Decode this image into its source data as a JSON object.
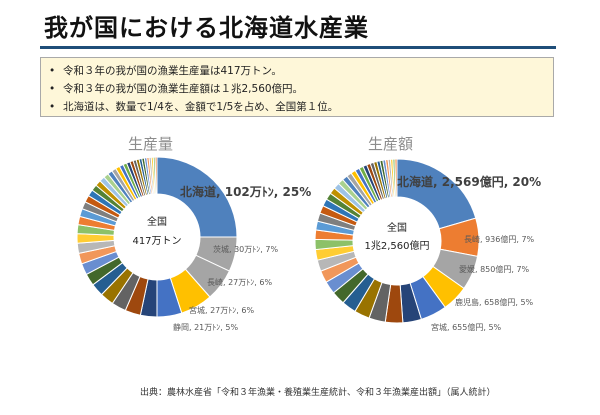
{
  "page": {
    "title": "我が国における北海道水産業",
    "bullets": [
      "令和３年の我が国の漁業生産量は417万トン。",
      "令和３年の我が国の漁業生産額は１兆2,560億円。",
      "北海道は、数量で1/4を、金額で1/5を占め、全国第１位。"
    ],
    "bullet_marker": "•",
    "source": "出典：農林水産省「令和３年漁業・養殖業生産統計、令和３年漁業産出額」（属人統計）"
  },
  "colors": {
    "palette": [
      "#4f81bd",
      "#a5a5a5",
      "#ffc000",
      "#4472c4",
      "#70ad47",
      "#264478",
      "#9e480e",
      "#636363",
      "#997300",
      "#255e91",
      "#43682b",
      "#698ed0",
      "#f1975a",
      "#b7b7b7",
      "#ffcd33",
      "#8cc168",
      "#ed7d31",
      "#5b9bd5",
      "#7f7f7f",
      "#c55a11",
      "#2e75b6",
      "#548235",
      "#bf9000",
      "#9dc3e6",
      "#a9d18e"
    ]
  },
  "chart_data": [
    {
      "type": "pie",
      "title": "生産量",
      "center_label": [
        "全国",
        "417万トン"
      ],
      "unit": "万トン",
      "total": 417,
      "labeled": [
        {
          "label": "北海道, 102万ﾄﾝ, 25%",
          "name": "北海道",
          "value": 102,
          "share": 0.25,
          "color": "#4f81bd",
          "emphasis": true
        },
        {
          "label": "茨城, 30万ﾄﾝ, 7%",
          "name": "茨城",
          "value": 30,
          "share": 0.07,
          "color": "#a5a5a5"
        },
        {
          "label": "長崎, 27万ﾄﾝ, 6%",
          "name": "長崎",
          "value": 27,
          "share": 0.065,
          "color": "#a5a5a5"
        },
        {
          "label": "宮城, 27万ﾄﾝ, 6%",
          "name": "宮城",
          "value": 27,
          "share": 0.065,
          "color": "#ffc000"
        },
        {
          "label": "静岡, 21万ﾄﾝ, 5%",
          "name": "静岡",
          "value": 21,
          "share": 0.05,
          "color": "#4472c4"
        }
      ],
      "others_count": 37
    },
    {
      "type": "pie",
      "title": "生産額",
      "center_label": [
        "全国",
        "1兆2,560億円"
      ],
      "unit": "億円",
      "total": 12560,
      "labeled": [
        {
          "label": "北海道, 2,569億円, 20%",
          "name": "北海道",
          "value": 2569,
          "share": 0.205,
          "color": "#4f81bd",
          "emphasis": true
        },
        {
          "label": "長崎, 936億円, 7%",
          "name": "長崎",
          "value": 936,
          "share": 0.075,
          "color": "#ed7d31"
        },
        {
          "label": "愛媛, 850億円, 7%",
          "name": "愛媛",
          "value": 850,
          "share": 0.068,
          "color": "#a5a5a5"
        },
        {
          "label": "鹿児島, 658億円, 5%",
          "name": "鹿児島",
          "value": 658,
          "share": 0.052,
          "color": "#ffc000"
        },
        {
          "label": "宮城, 655億円, 5%",
          "name": "宮城",
          "value": 655,
          "share": 0.052,
          "color": "#4472c4"
        }
      ],
      "others_count": 37
    }
  ]
}
